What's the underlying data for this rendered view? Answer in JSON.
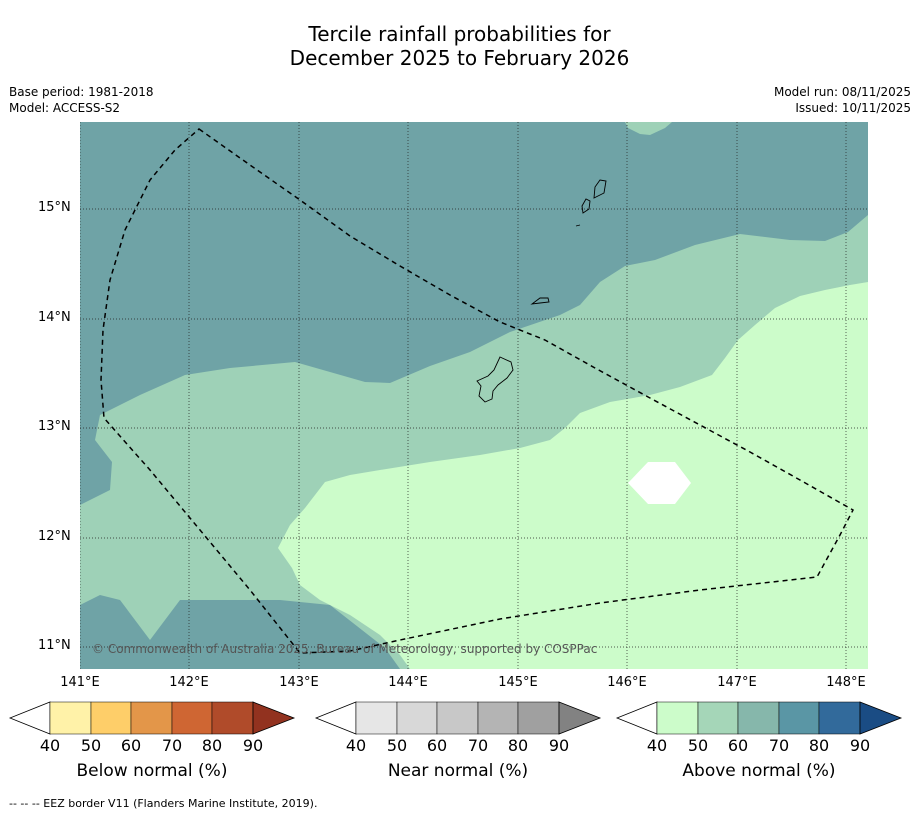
{
  "title_line1": "Tercile rainfall probabilities for",
  "title_line2": "December 2025 to February 2026",
  "meta": {
    "base_period": "Base period: 1981-2018",
    "model": "Model: ACCESS-S2",
    "model_run": "Model run: 08/11/2025",
    "issued": "Issued: 10/11/2025"
  },
  "map": {
    "lat_labels": [
      "15°N",
      "14°N",
      "13°N",
      "12°N",
      "11°N"
    ],
    "lon_labels": [
      "141°E",
      "142°E",
      "143°E",
      "144°E",
      "145°E",
      "146°E",
      "147°E",
      "148°E"
    ],
    "copyright": "© Commonwealth of Australia 2025, Bureau of Meteorology, supported by COSPPac",
    "colors": {
      "above_70": "#6fa3a6",
      "above_50": "#9ed1b7",
      "above_40": "#ccfcca",
      "no_signal": "#ffffff"
    }
  },
  "colorbars": [
    {
      "label": "Below normal (%)",
      "ticks": [
        "40",
        "50",
        "60",
        "70",
        "80",
        "90"
      ],
      "colors": [
        "#fff2a8",
        "#fece69",
        "#e39649",
        "#cf6633",
        "#b04b2a",
        "#92321f"
      ]
    },
    {
      "label": "Near normal (%)",
      "ticks": [
        "40",
        "50",
        "60",
        "70",
        "80",
        "90"
      ],
      "colors": [
        "#e6e6e6",
        "#d8d8d8",
        "#c8c8c8",
        "#b4b4b4",
        "#a0a0a0",
        "#828282"
      ]
    },
    {
      "label": "Above normal (%)",
      "ticks": [
        "40",
        "50",
        "60",
        "70",
        "80",
        "90"
      ],
      "colors": [
        "#ccfcca",
        "#a5d6b8",
        "#86b7ab",
        "#5a96a5",
        "#326a9b",
        "#1a4c84"
      ]
    }
  ],
  "footer": "--  --  -- EEZ border V11 (Flanders Marine Institute, 2019)."
}
